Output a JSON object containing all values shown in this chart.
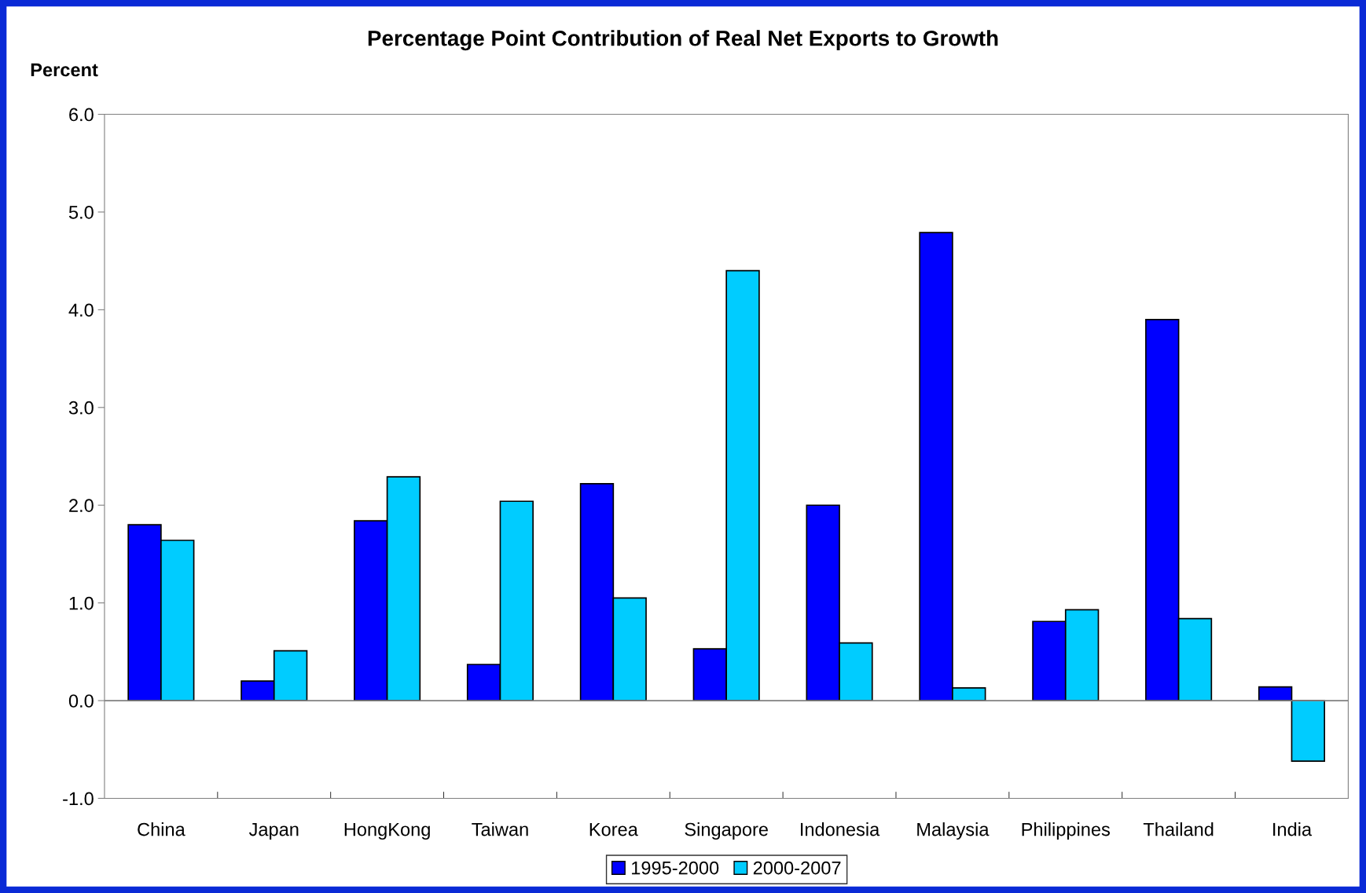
{
  "chart_data": {
    "type": "bar",
    "title": "Percentage Point Contribution of Real Net Exports to Growth",
    "ylabel": "Percent",
    "categories": [
      "China",
      "Japan",
      "HongKong",
      "Taiwan",
      "Korea",
      "Singapore",
      "Indonesia",
      "Malaysia",
      "Philippines",
      "Thailand",
      "India"
    ],
    "series": [
      {
        "name": "1995-2000",
        "color": "#0000ff",
        "values": [
          1.8,
          0.2,
          1.84,
          0.37,
          2.22,
          0.53,
          2.0,
          4.79,
          0.81,
          3.9,
          0.14
        ]
      },
      {
        "name": "2000-2007",
        "color": "#00ccff",
        "values": [
          1.64,
          0.51,
          2.29,
          2.04,
          1.05,
          4.4,
          0.59,
          0.13,
          0.93,
          0.84,
          -0.62
        ]
      }
    ],
    "ylim": [
      -1.0,
      6.0
    ],
    "yticks": [
      {
        "value": -1.0,
        "label": "-1.0"
      },
      {
        "value": 0.0,
        "label": "0.0"
      },
      {
        "value": 1.0,
        "label": "1.0"
      },
      {
        "value": 2.0,
        "label": "2.0"
      },
      {
        "value": 3.0,
        "label": "3.0"
      },
      {
        "value": 4.0,
        "label": "4.0"
      },
      {
        "value": 5.0,
        "label": "5.0"
      },
      {
        "value": 6.0,
        "label": "6.0"
      }
    ],
    "ref_lines": [
      {
        "axis": "y",
        "value": 0.0,
        "color": "#808080",
        "line_style": "solid"
      }
    ],
    "legend": "bottom"
  }
}
